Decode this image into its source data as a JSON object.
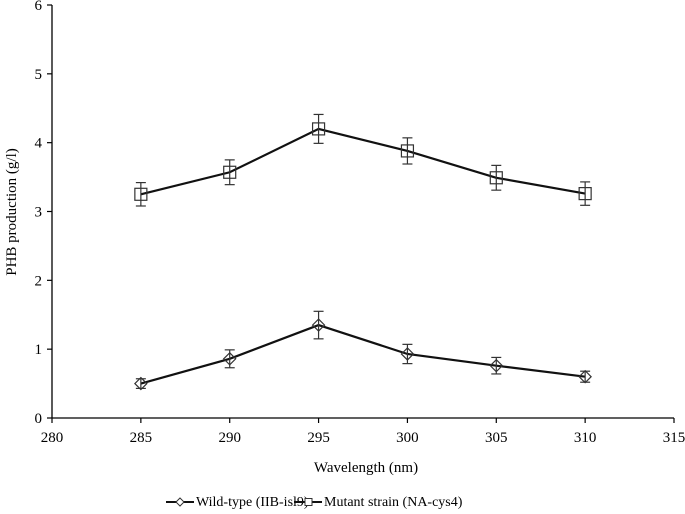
{
  "chart_data": {
    "type": "line",
    "title": "",
    "xlabel": "Wavelength  (nm)",
    "ylabel": "PHB production (g/l)",
    "xlim": [
      280,
      315
    ],
    "ylim": [
      0,
      6
    ],
    "xticks": [
      280,
      285,
      290,
      295,
      300,
      305,
      310,
      315
    ],
    "yticks": [
      0,
      1,
      2,
      3,
      4,
      5,
      6
    ],
    "grid": false,
    "legend_position": "bottom",
    "x": [
      285,
      290,
      295,
      300,
      305,
      310
    ],
    "series": [
      {
        "name": "Wild-type (IIB-isl9)",
        "marker": "diamond",
        "values": [
          0.5,
          0.86,
          1.35,
          0.93,
          0.76,
          0.6
        ],
        "errors": [
          0.07,
          0.13,
          0.2,
          0.14,
          0.12,
          0.08
        ]
      },
      {
        "name": "Mutant strain (NA-cys4)",
        "marker": "square",
        "values": [
          3.25,
          3.57,
          4.2,
          3.88,
          3.49,
          3.26
        ],
        "errors": [
          0.17,
          0.18,
          0.21,
          0.19,
          0.18,
          0.17
        ]
      }
    ]
  }
}
